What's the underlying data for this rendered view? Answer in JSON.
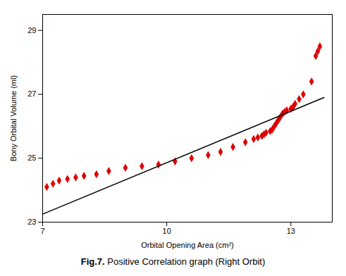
{
  "chart_data": {
    "type": "scatter",
    "caption": "Fig.7. Positive Correlation graph (Right Orbit)",
    "xlabel": "Orbital Opening Area (cm²)",
    "ylabel": "Bony Orbital Volume (ml)",
    "xlim": [
      7,
      14
    ],
    "ylim": [
      23,
      29.5
    ],
    "xticks": [
      7,
      10,
      13
    ],
    "yticks": [
      23,
      25,
      27,
      29
    ],
    "grid": false,
    "series": [
      {
        "type": "scatter",
        "color": "#dd0000",
        "marker": "diamond",
        "x": [
          7.1,
          7.25,
          7.4,
          7.6,
          7.8,
          8.0,
          8.3,
          8.6,
          9.0,
          9.4,
          9.8,
          10.2,
          10.6,
          11.0,
          11.3,
          11.6,
          11.9,
          12.1,
          12.2,
          12.3,
          12.35,
          12.4,
          12.5,
          12.55,
          12.6,
          12.65,
          12.7,
          12.75,
          12.8,
          12.85,
          12.9,
          13.0,
          13.05,
          13.1,
          13.2,
          13.3,
          13.5,
          13.6,
          13.65,
          13.7
        ],
        "values": [
          24.1,
          24.2,
          24.3,
          24.35,
          24.4,
          24.45,
          24.5,
          24.6,
          24.7,
          24.75,
          24.8,
          24.9,
          25.0,
          25.1,
          25.2,
          25.35,
          25.5,
          25.6,
          25.65,
          25.7,
          25.75,
          25.8,
          25.85,
          25.9,
          26.0,
          26.1,
          26.2,
          26.3,
          26.4,
          26.45,
          26.5,
          26.55,
          26.6,
          26.7,
          26.85,
          27.0,
          27.4,
          28.2,
          28.35,
          28.5
        ]
      },
      {
        "type": "line",
        "color": "#000000",
        "x": [
          7.0,
          13.8
        ],
        "values": [
          23.25,
          26.9
        ]
      }
    ]
  }
}
